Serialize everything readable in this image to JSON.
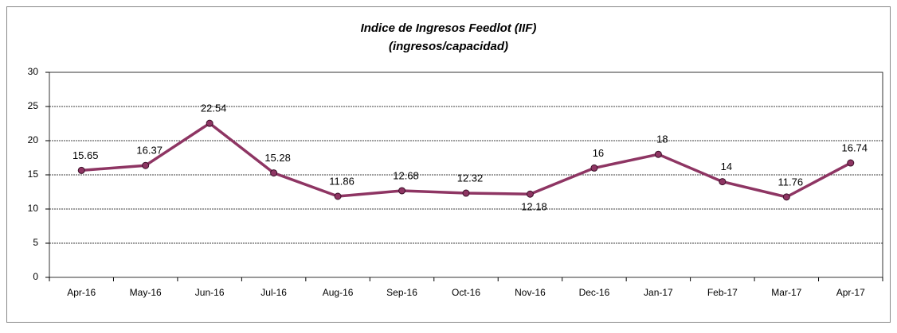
{
  "chart_data": {
    "type": "line",
    "title": "Indice de Ingresos Feedlot (IIF)",
    "subtitle": "(ingresos/capacidad)",
    "categories": [
      "Apr-16",
      "May-16",
      "Jun-16",
      "Jul-16",
      "Aug-16",
      "Sep-16",
      "Oct-16",
      "Nov-16",
      "Dec-16",
      "Jan-17",
      "Feb-17",
      "Mar-17",
      "Apr-17"
    ],
    "values": [
      15.65,
      16.37,
      22.54,
      15.28,
      11.86,
      12.68,
      12.32,
      12.18,
      16,
      18,
      14,
      11.76,
      16.74
    ],
    "color": "#8e3563",
    "ylim": [
      0,
      30
    ],
    "yticks": [
      0,
      5,
      10,
      15,
      20,
      25,
      30
    ],
    "grid": true
  }
}
